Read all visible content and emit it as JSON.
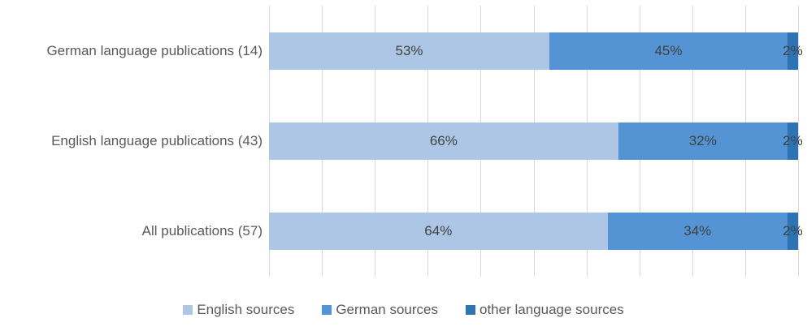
{
  "colors": {
    "english_sources": "#adc6e5",
    "german_sources": "#5493d4",
    "other_sources": "#2e74b5",
    "gridline": "#d9d9d9",
    "bar_label_text": "#404040",
    "axis_and_legend_text": "#595959",
    "background": "#ffffff"
  },
  "chart_data": {
    "type": "bar",
    "orientation": "horizontal",
    "stacked": true,
    "title": "",
    "xlabel": "",
    "ylabel": "",
    "categories": [
      "German language publications (14)",
      "English language publications (43)",
      "All publications (57)"
    ],
    "series": [
      {
        "name": "English sources",
        "color": "#adc6e5",
        "values": [
          53,
          66,
          64
        ]
      },
      {
        "name": "German sources",
        "color": "#5493d4",
        "values": [
          45,
          32,
          34
        ]
      },
      {
        "name": "other language sources",
        "color": "#2e74b5",
        "values": [
          2,
          2,
          2
        ]
      }
    ],
    "value_suffix": "%",
    "data_labels": true,
    "xlim": [
      0,
      100
    ],
    "gridline_interval": 10,
    "grid": true,
    "legend_position": "bottom"
  }
}
